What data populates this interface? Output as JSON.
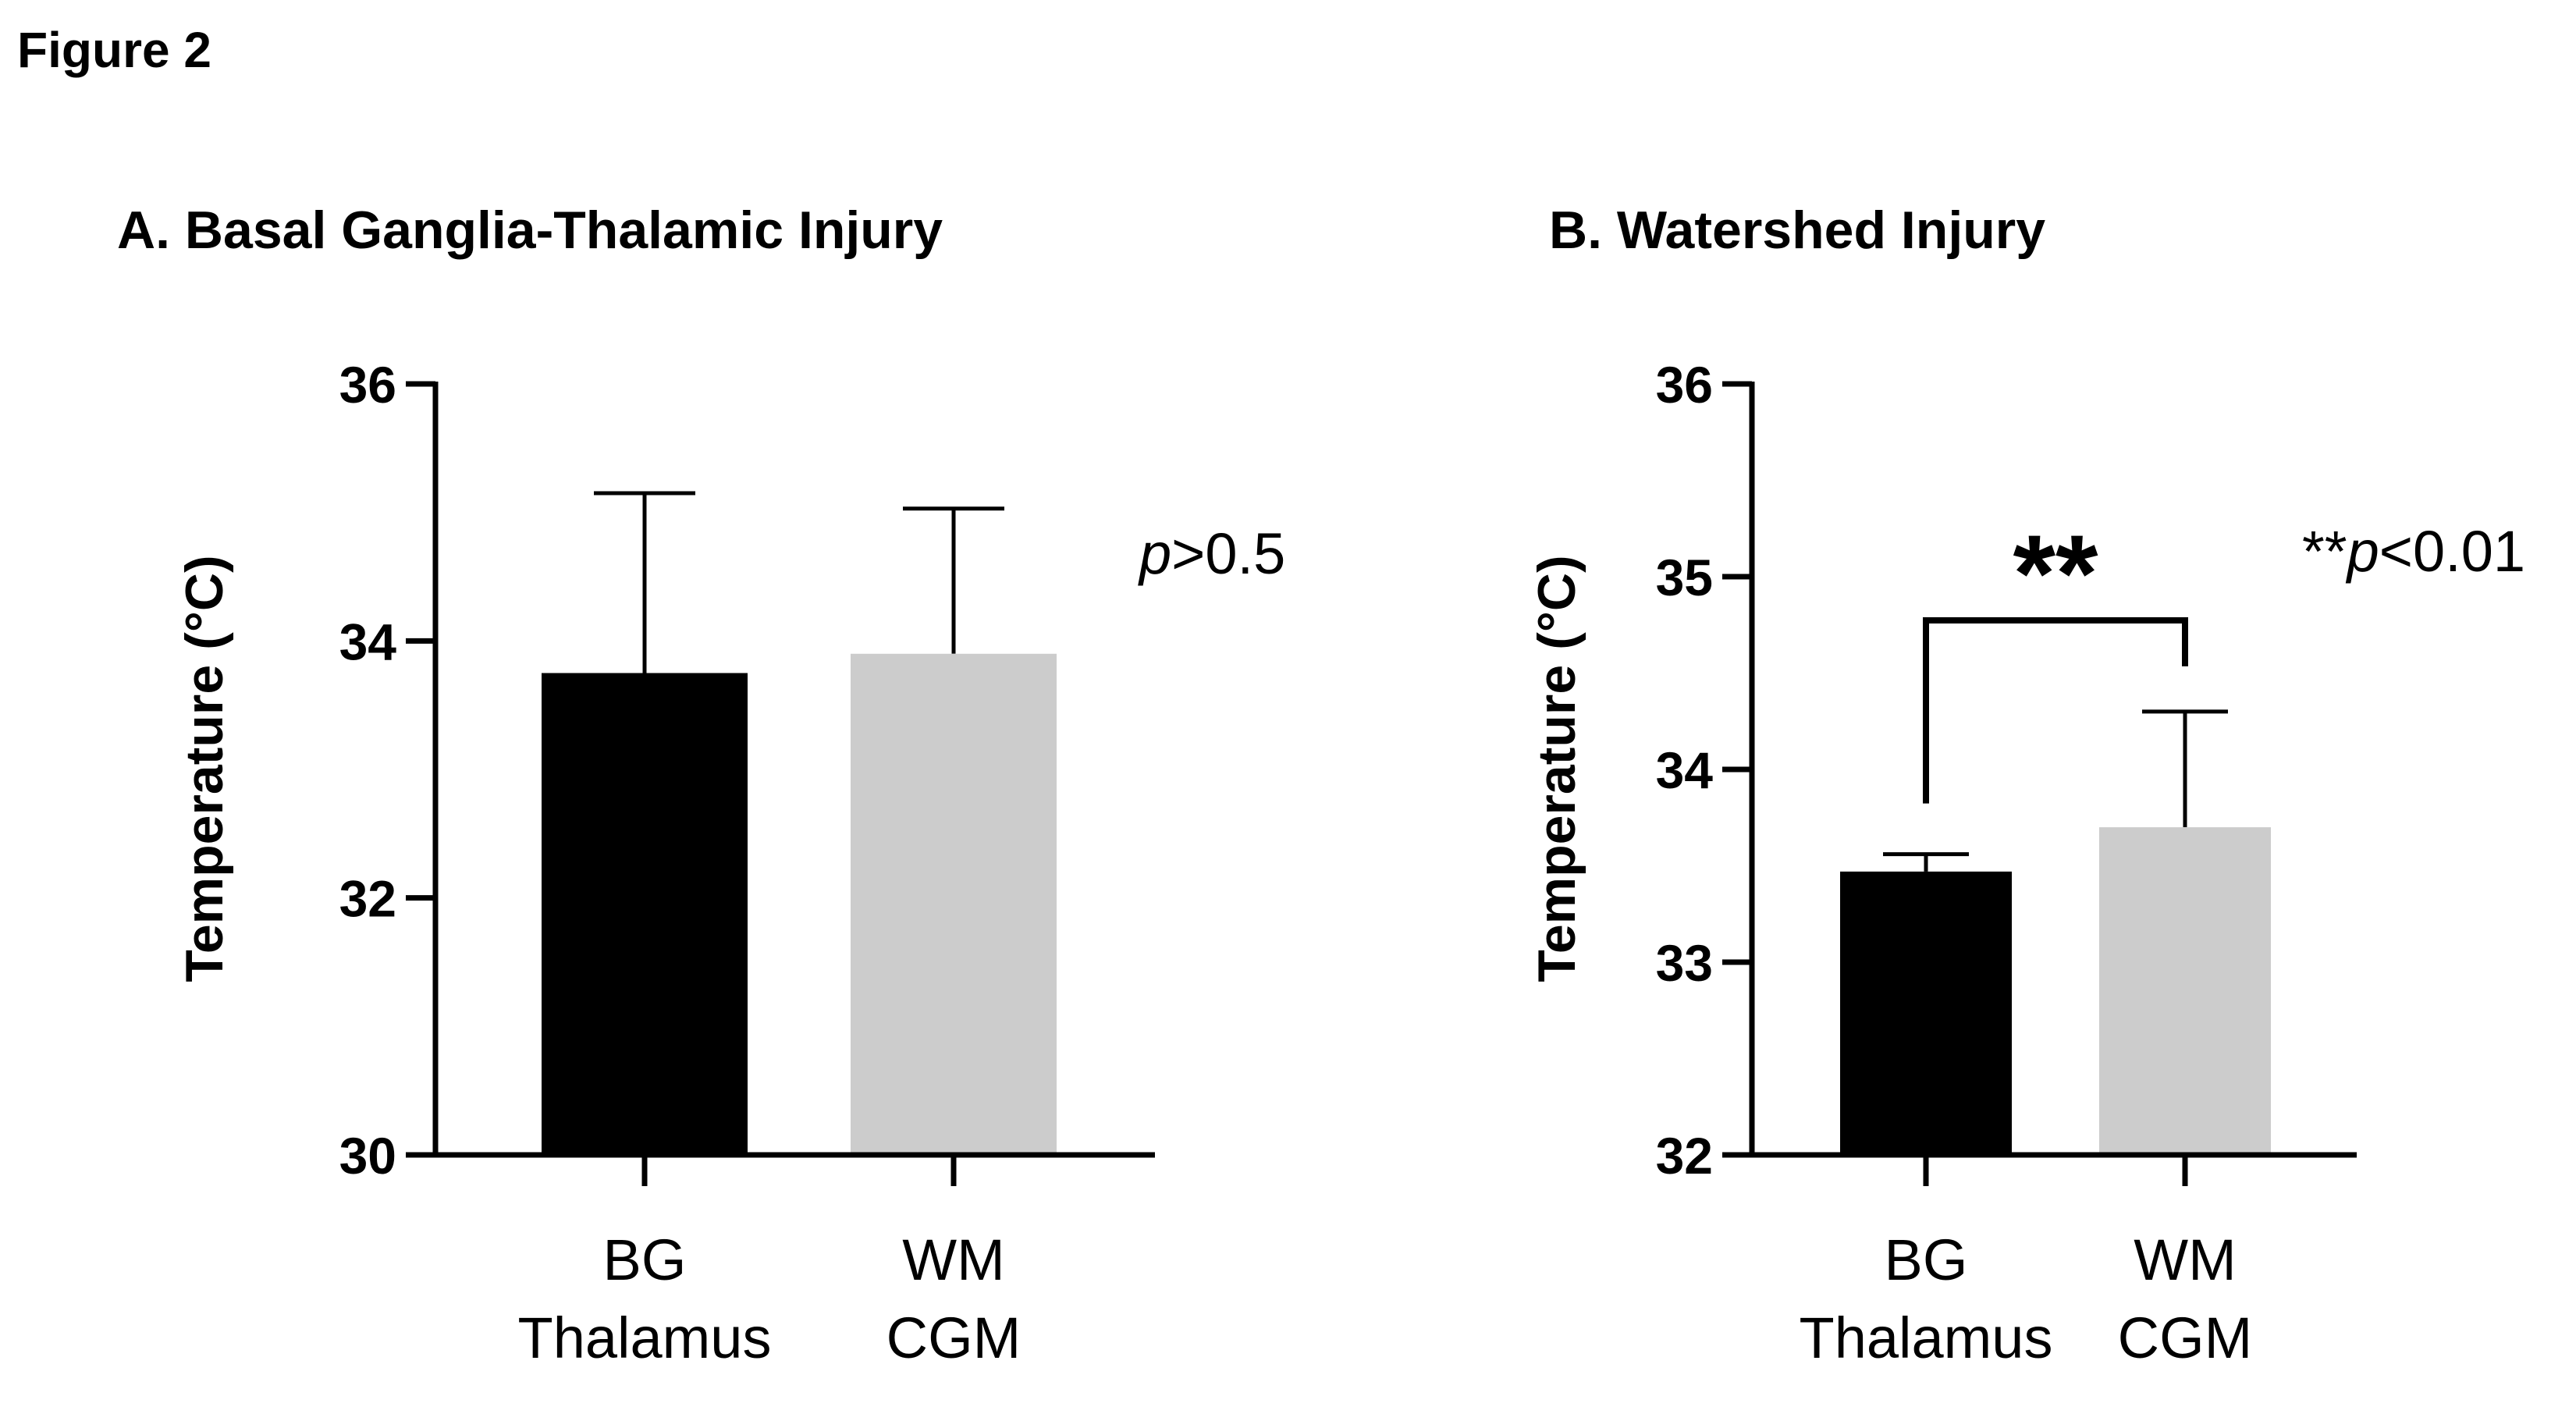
{
  "figure_label": "Figure 2",
  "chart_data": [
    {
      "type": "bar",
      "title": "A. Basal Ganglia-Thalamic Injury",
      "xlabel": "",
      "ylabel": "Temperature (°C)",
      "ylim": [
        30,
        36
      ],
      "yticks": [
        30,
        32,
        34,
        36
      ],
      "categories": [
        "BG Thalamus",
        "WM CGM"
      ],
      "category_lines": [
        [
          "BG",
          "Thalamus"
        ],
        [
          "WM",
          "CGM"
        ]
      ],
      "values": [
        33.75,
        33.9
      ],
      "error_upper": [
        35.15,
        35.03
      ],
      "bar_colors": [
        "#000000",
        "#cccccc"
      ],
      "stat_annotation": {
        "prefix": "",
        "italic": "p",
        "suffix": ">0.5"
      },
      "significance_bracket": null,
      "grid": false
    },
    {
      "type": "bar",
      "title": "B. Watershed Injury",
      "xlabel": "",
      "ylabel": "Temperature (°C)",
      "ylim": [
        32,
        36
      ],
      "yticks": [
        32,
        33,
        34,
        35,
        36
      ],
      "categories": [
        "BG Thalamus",
        "WM CGM"
      ],
      "category_lines": [
        [
          "BG",
          "Thalamus"
        ],
        [
          "WM",
          "CGM"
        ]
      ],
      "values": [
        33.47,
        33.7
      ],
      "error_upper": [
        33.56,
        34.3
      ],
      "bar_colors": [
        "#000000",
        "#cccccc"
      ],
      "stat_annotation": {
        "prefix": "**",
        "italic": "p",
        "suffix": "<0.01"
      },
      "significance_bracket": {
        "label": "**",
        "between": [
          0,
          1
        ]
      },
      "grid": false
    }
  ]
}
